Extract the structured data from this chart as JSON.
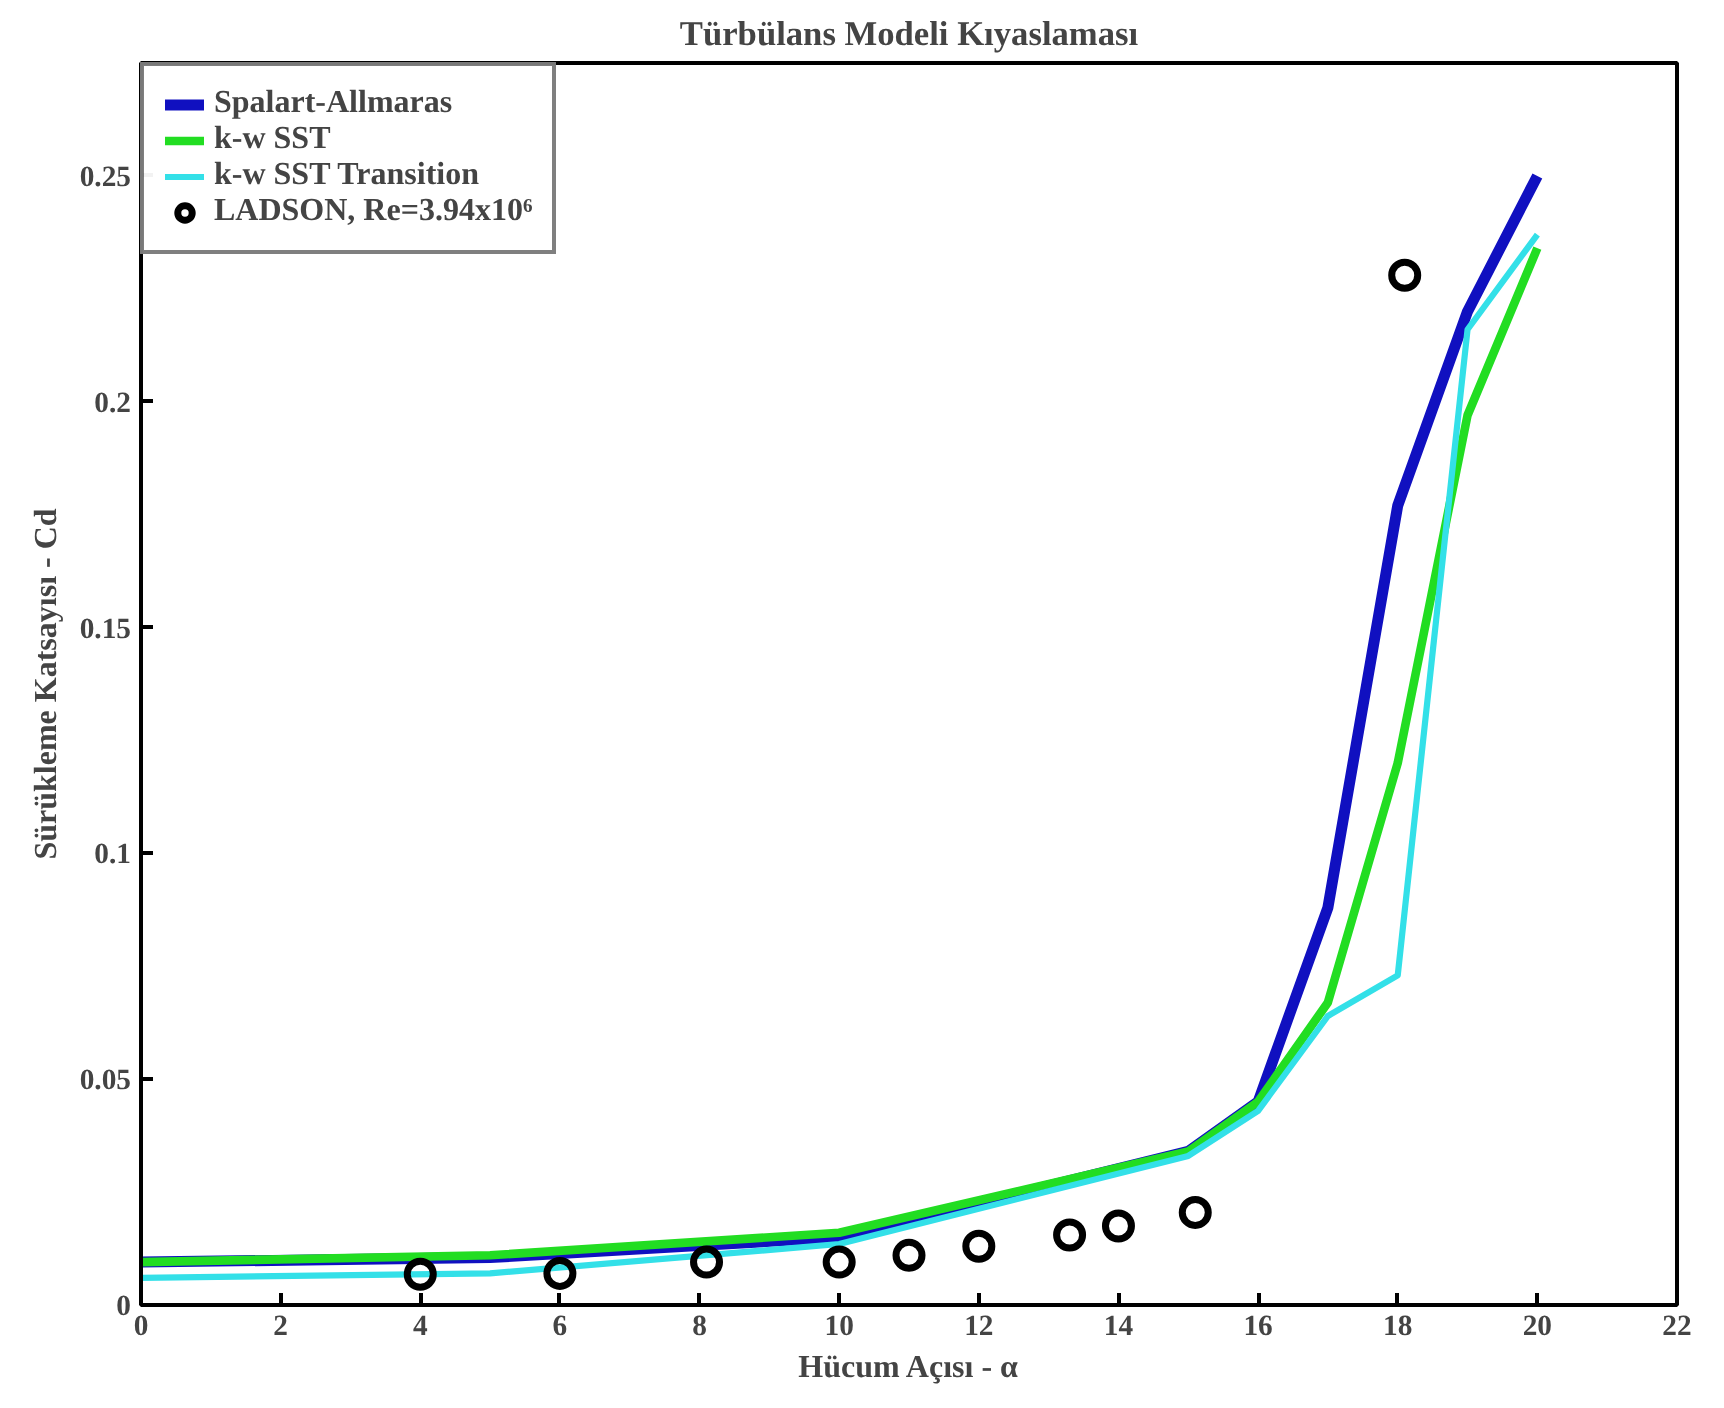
{
  "chart_data": {
    "type": "line",
    "title": "Türbülans Modeli Kıyaslaması",
    "xlabel": "Hücum Açısı - α",
    "ylabel": "Sürükleme Katsayısı - Cd",
    "xlim": [
      0,
      22
    ],
    "ylim": [
      0,
      0.275
    ],
    "xticks": [
      0,
      2,
      4,
      6,
      8,
      10,
      12,
      14,
      16,
      18,
      20,
      22
    ],
    "yticks": [
      0,
      0.05,
      0.1,
      0.15,
      0.2,
      0.25
    ],
    "grid": false,
    "legend": "top left",
    "line_style": "solid",
    "series": [
      {
        "name": "Spalart-Allmaras",
        "color": "#1010c0",
        "x": [
          0,
          5,
          10,
          15,
          16,
          17,
          18,
          19,
          20
        ],
        "values": [
          0.0095,
          0.0105,
          0.015,
          0.034,
          0.045,
          0.088,
          0.177,
          0.22,
          0.25
        ]
      },
      {
        "name": "k-w SST",
        "color": "#22dd22",
        "x": [
          0,
          5,
          10,
          15,
          16,
          17,
          18,
          19,
          20
        ],
        "values": [
          0.0095,
          0.011,
          0.016,
          0.034,
          0.045,
          0.067,
          0.12,
          0.197,
          0.234
        ]
      },
      {
        "name": "k-w SST Transition",
        "color": "#33e0e8",
        "x": [
          0,
          5,
          10,
          15,
          16,
          17,
          18,
          19,
          20
        ],
        "values": [
          0.006,
          0.007,
          0.0135,
          0.033,
          0.043,
          0.064,
          0.073,
          0.216,
          0.237
        ]
      },
      {
        "name": "LADSON, Re=3.94x10⁶",
        "type": "scatter",
        "marker": "circle",
        "color": "#000000",
        "x": [
          4,
          6,
          8.1,
          10,
          11,
          12,
          13.3,
          14,
          15.1,
          18.1
        ],
        "values": [
          0.0068,
          0.007,
          0.0095,
          0.0095,
          0.011,
          0.013,
          0.0155,
          0.0175,
          0.0205,
          0.228
        ]
      }
    ]
  }
}
